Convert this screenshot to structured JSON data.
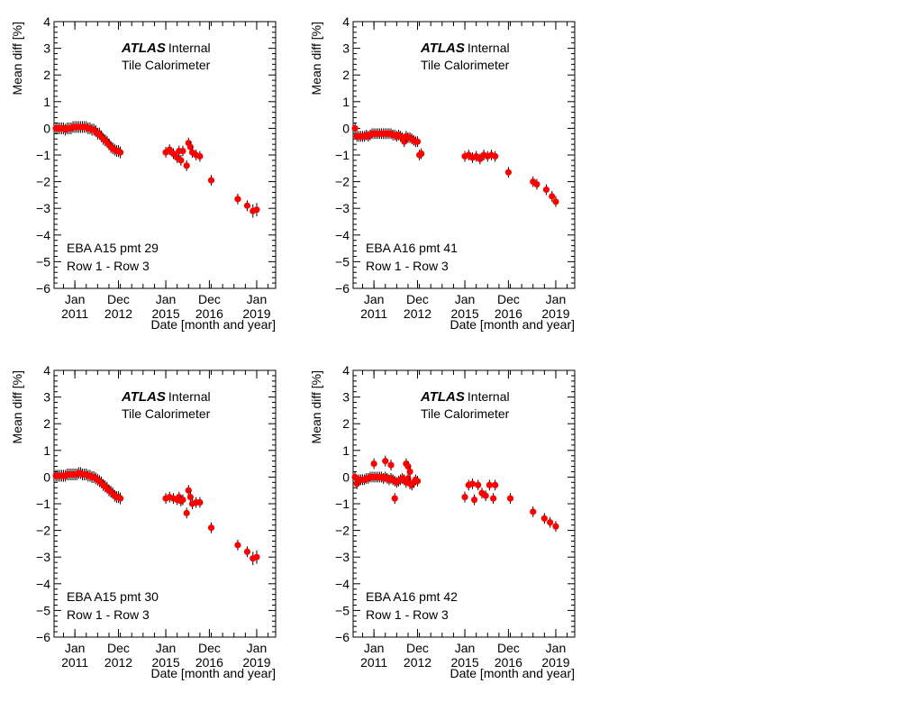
{
  "chart_data": [
    {
      "type": "scatter",
      "atlas_label": "ATLAS",
      "atlas_status": "Internal",
      "subtitle": "Tile Calorimeter",
      "ylabel": "Mean diff [%]",
      "xlabel": "Date [month and year]",
      "ylim": [
        -6,
        4
      ],
      "yticks": [
        "4",
        "3",
        "2",
        "1",
        "0",
        "−1",
        "−2",
        "−3",
        "−4",
        "−5",
        "−6"
      ],
      "xticks": [
        {
          "month": "Jan",
          "year": "2011"
        },
        {
          "month": "Dec",
          "year": "2012"
        },
        {
          "month": "Jan",
          "year": "2015"
        },
        {
          "month": "Dec",
          "year": "2016"
        },
        {
          "month": "Jan",
          "year": "2019"
        }
      ],
      "channel_label": "EBA A15 pmt 29",
      "row_label": "Row 1 - Row 3",
      "series": [
        {
          "x": [
            "2010-03",
            "2010-04",
            "2010-05",
            "2010-06",
            "2010-07",
            "2010-08",
            "2010-09",
            "2010-10",
            "2010-11",
            "2010-12",
            "2011-01",
            "2011-02",
            "2011-03",
            "2011-04",
            "2011-05",
            "2011-06",
            "2011-07",
            "2011-08",
            "2011-09",
            "2011-10",
            "2011-11",
            "2011-12",
            "2012-01",
            "2012-02",
            "2012-03",
            "2012-04",
            "2012-05",
            "2012-06",
            "2012-07",
            "2012-08",
            "2012-09",
            "2012-10",
            "2012-11",
            "2012-12",
            "2013-01",
            "2015-01",
            "2015-03",
            "2015-05",
            "2015-07",
            "2015-08",
            "2015-09",
            "2015-10",
            "2015-12",
            "2016-01",
            "2016-02",
            "2016-03",
            "2016-05",
            "2016-07",
            "2017-01",
            "2018-03",
            "2018-08",
            "2018-11",
            "2019-01"
          ],
          "y": [
            0,
            0,
            0,
            0,
            0,
            -0.05,
            0,
            0,
            0,
            0.05,
            0.05,
            0.05,
            0.05,
            0.05,
            0.05,
            0.05,
            0.05,
            0,
            0,
            -0.05,
            -0.05,
            -0.1,
            -0.2,
            -0.2,
            -0.3,
            -0.4,
            -0.45,
            -0.5,
            -0.6,
            -0.7,
            -0.75,
            -0.8,
            -0.85,
            -0.85,
            -0.9,
            -0.9,
            -0.8,
            -0.95,
            -1.1,
            -0.85,
            -1.2,
            -0.85,
            -1.4,
            -0.55,
            -0.7,
            -0.9,
            -1.0,
            -1.05,
            -1.95,
            -2.65,
            -2.9,
            -3.1,
            -3.05
          ],
          "err": [
            0.22,
            0.22,
            0.22,
            0.22,
            0.22,
            0.22,
            0.22,
            0.22,
            0.22,
            0.22,
            0.22,
            0.22,
            0.22,
            0.22,
            0.22,
            0.22,
            0.22,
            0.22,
            0.22,
            0.22,
            0.22,
            0.22,
            0.22,
            0.22,
            0.22,
            0.22,
            0.22,
            0.22,
            0.22,
            0.22,
            0.22,
            0.22,
            0.22,
            0.22,
            0.22,
            0.2,
            0.2,
            0.2,
            0.2,
            0.2,
            0.2,
            0.2,
            0.2,
            0.2,
            0.2,
            0.2,
            0.2,
            0.2,
            0.2,
            0.2,
            0.2,
            0.25,
            0.25
          ]
        }
      ]
    },
    {
      "type": "scatter",
      "atlas_label": "ATLAS",
      "atlas_status": "Internal",
      "subtitle": "Tile Calorimeter",
      "ylabel": "Mean diff [%]",
      "xlabel": "Date [month and year]",
      "ylim": [
        -6,
        4
      ],
      "yticks": [
        "4",
        "3",
        "2",
        "1",
        "0",
        "−1",
        "−2",
        "−3",
        "−4",
        "−5",
        "−6"
      ],
      "xticks": [
        {
          "month": "Jan",
          "year": "2011"
        },
        {
          "month": "Dec",
          "year": "2012"
        },
        {
          "month": "Jan",
          "year": "2015"
        },
        {
          "month": "Dec",
          "year": "2016"
        },
        {
          "month": "Jan",
          "year": "2019"
        }
      ],
      "channel_label": "EBA A16 pmt 41",
      "row_label": "Row 1 - Row 3",
      "series": [
        {
          "x": [
            "2010-03",
            "2010-04",
            "2010-05",
            "2010-06",
            "2010-07",
            "2010-08",
            "2010-09",
            "2010-10",
            "2010-11",
            "2010-12",
            "2011-01",
            "2011-02",
            "2011-03",
            "2011-04",
            "2011-05",
            "2011-06",
            "2011-07",
            "2011-08",
            "2011-09",
            "2011-10",
            "2011-11",
            "2011-12",
            "2012-01",
            "2012-02",
            "2012-03",
            "2012-04",
            "2012-05",
            "2012-06",
            "2012-07",
            "2012-08",
            "2012-09",
            "2012-10",
            "2012-11",
            "2012-12",
            "2013-01",
            "2013-02",
            "2015-01",
            "2015-03",
            "2015-05",
            "2015-07",
            "2015-09",
            "2015-11",
            "2016-01",
            "2016-03",
            "2016-05",
            "2016-12",
            "2018-01",
            "2018-03",
            "2018-08",
            "2018-11",
            "2019-01"
          ],
          "y": [
            0,
            -0.3,
            -0.3,
            -0.3,
            -0.3,
            -0.3,
            -0.25,
            -0.3,
            -0.25,
            -0.2,
            -0.2,
            -0.2,
            -0.2,
            -0.2,
            -0.2,
            -0.2,
            -0.2,
            -0.2,
            -0.2,
            -0.2,
            -0.25,
            -0.25,
            -0.3,
            -0.25,
            -0.3,
            -0.35,
            -0.5,
            -0.3,
            -0.35,
            -0.35,
            -0.4,
            -0.45,
            -0.5,
            -0.5,
            -1.0,
            -0.95,
            -1.05,
            -1.0,
            -1.1,
            -1.05,
            -1.15,
            -1.0,
            -1.05,
            -1.0,
            -1.05,
            -1.65,
            -2.0,
            -2.1,
            -2.3,
            -2.55,
            -2.75
          ],
          "err": [
            0.2,
            0.2,
            0.2,
            0.2,
            0.2,
            0.2,
            0.2,
            0.2,
            0.2,
            0.2,
            0.2,
            0.2,
            0.2,
            0.2,
            0.2,
            0.2,
            0.2,
            0.2,
            0.2,
            0.2,
            0.2,
            0.2,
            0.2,
            0.2,
            0.2,
            0.2,
            0.2,
            0.2,
            0.2,
            0.2,
            0.2,
            0.2,
            0.2,
            0.2,
            0.2,
            0.2,
            0.2,
            0.2,
            0.2,
            0.2,
            0.2,
            0.2,
            0.2,
            0.2,
            0.2,
            0.2,
            0.2,
            0.2,
            0.2,
            0.2,
            0.2
          ]
        }
      ]
    },
    {
      "type": "scatter",
      "atlas_label": "ATLAS",
      "atlas_status": "Internal",
      "subtitle": "Tile Calorimeter",
      "ylabel": "Mean diff [%]",
      "xlabel": "Date [month and year]",
      "ylim": [
        -6,
        4
      ],
      "yticks": [
        "4",
        "3",
        "2",
        "1",
        "0",
        "−1",
        "−2",
        "−3",
        "−4",
        "−5",
        "−6"
      ],
      "xticks": [
        {
          "month": "Jan",
          "year": "2011"
        },
        {
          "month": "Dec",
          "year": "2012"
        },
        {
          "month": "Jan",
          "year": "2015"
        },
        {
          "month": "Dec",
          "year": "2016"
        },
        {
          "month": "Jan",
          "year": "2019"
        }
      ],
      "channel_label": "EBA A15 pmt 30",
      "row_label": "Row 1 - Row 3",
      "series": [
        {
          "x": [
            "2010-03",
            "2010-04",
            "2010-05",
            "2010-06",
            "2010-07",
            "2010-08",
            "2010-09",
            "2010-10",
            "2010-11",
            "2010-12",
            "2011-01",
            "2011-02",
            "2011-03",
            "2011-04",
            "2011-05",
            "2011-06",
            "2011-07",
            "2011-08",
            "2011-09",
            "2011-10",
            "2011-11",
            "2011-12",
            "2012-01",
            "2012-02",
            "2012-03",
            "2012-04",
            "2012-05",
            "2012-06",
            "2012-07",
            "2012-08",
            "2012-09",
            "2012-10",
            "2012-11",
            "2012-12",
            "2013-01",
            "2015-01",
            "2015-03",
            "2015-05",
            "2015-07",
            "2015-08",
            "2015-09",
            "2015-10",
            "2015-12",
            "2016-01",
            "2016-02",
            "2016-03",
            "2016-05",
            "2016-07",
            "2017-01",
            "2018-03",
            "2018-08",
            "2018-11",
            "2019-01"
          ],
          "y": [
            0.05,
            0.05,
            0.05,
            0.05,
            0.05,
            0.05,
            0.1,
            0.1,
            0.1,
            0.1,
            0.1,
            0.1,
            0.15,
            0.15,
            0.1,
            0.1,
            0.1,
            0.05,
            0.05,
            0,
            0,
            -0.05,
            -0.1,
            -0.15,
            -0.2,
            -0.3,
            -0.35,
            -0.4,
            -0.5,
            -0.55,
            -0.6,
            -0.7,
            -0.75,
            -0.75,
            -0.8,
            -0.8,
            -0.75,
            -0.8,
            -0.85,
            -0.75,
            -0.9,
            -0.85,
            -1.35,
            -0.5,
            -0.75,
            -1.0,
            -0.95,
            -0.95,
            -1.9,
            -2.55,
            -2.8,
            -3.05,
            -3.0
          ],
          "err": [
            0.22,
            0.22,
            0.22,
            0.22,
            0.22,
            0.22,
            0.22,
            0.22,
            0.22,
            0.22,
            0.22,
            0.22,
            0.22,
            0.22,
            0.22,
            0.22,
            0.22,
            0.22,
            0.22,
            0.22,
            0.22,
            0.22,
            0.22,
            0.22,
            0.22,
            0.22,
            0.22,
            0.22,
            0.22,
            0.22,
            0.22,
            0.22,
            0.22,
            0.22,
            0.22,
            0.2,
            0.2,
            0.2,
            0.2,
            0.2,
            0.2,
            0.2,
            0.2,
            0.2,
            0.2,
            0.2,
            0.2,
            0.2,
            0.2,
            0.2,
            0.2,
            0.25,
            0.25
          ]
        }
      ]
    },
    {
      "type": "scatter",
      "atlas_label": "ATLAS",
      "atlas_status": "Internal",
      "subtitle": "Tile Calorimeter",
      "ylabel": "Mean diff [%]",
      "xlabel": "Date [month and year]",
      "ylim": [
        -6,
        4
      ],
      "yticks": [
        "4",
        "3",
        "2",
        "1",
        "0",
        "−1",
        "−2",
        "−3",
        "−4",
        "−5",
        "−6"
      ],
      "xticks": [
        {
          "month": "Jan",
          "year": "2011"
        },
        {
          "month": "Dec",
          "year": "2012"
        },
        {
          "month": "Jan",
          "year": "2015"
        },
        {
          "month": "Dec",
          "year": "2016"
        },
        {
          "month": "Jan",
          "year": "2019"
        }
      ],
      "channel_label": "EBA A16 pmt 42",
      "row_label": "Row 1 - Row 3",
      "series": [
        {
          "x": [
            "2010-03",
            "2010-04",
            "2010-05",
            "2010-06",
            "2010-07",
            "2010-08",
            "2010-09",
            "2010-10",
            "2010-11",
            "2010-12",
            "2011-01",
            "2011-02",
            "2011-03",
            "2011-04",
            "2011-05",
            "2011-06",
            "2011-07",
            "2011-08",
            "2011-09",
            "2011-10",
            "2011-11",
            "2011-12",
            "2012-01",
            "2012-02",
            "2012-03",
            "2012-04",
            "2012-05",
            "2012-06",
            "2012-07",
            "2012-08",
            "2012-09",
            "2012-10",
            "2012-11",
            "2012-12",
            "2011-01",
            "2011-07",
            "2011-10",
            "2011-12",
            "2012-06",
            "2012-07",
            "2012-08",
            "2015-01",
            "2015-03",
            "2015-05",
            "2015-06",
            "2015-08",
            "2015-10",
            "2015-12",
            "2016-02",
            "2016-04",
            "2016-05",
            "2017-01",
            "2018-01",
            "2018-07",
            "2018-10",
            "2019-01"
          ],
          "y": [
            0,
            -0.25,
            -0.1,
            -0.1,
            -0.1,
            -0.1,
            -0.05,
            -0.05,
            0,
            0,
            0,
            0,
            0,
            0,
            0,
            -0.05,
            0,
            -0.05,
            -0.1,
            -0.05,
            -0.1,
            -0.15,
            -0.2,
            -0.15,
            -0.1,
            -0.05,
            -0.1,
            -0.2,
            -0.05,
            -0.25,
            -0.3,
            -0.2,
            -0.1,
            -0.15,
            0.5,
            0.6,
            0.45,
            -0.8,
            0.5,
            0.4,
            0.2,
            -0.75,
            -0.3,
            -0.25,
            -0.85,
            -0.3,
            -0.6,
            -0.7,
            -0.3,
            -0.8,
            -0.3,
            -0.8,
            -1.3,
            -1.55,
            -1.7,
            -1.85
          ],
          "err": [
            0.2,
            0.2,
            0.2,
            0.2,
            0.2,
            0.2,
            0.2,
            0.2,
            0.2,
            0.2,
            0.2,
            0.2,
            0.2,
            0.2,
            0.2,
            0.2,
            0.2,
            0.2,
            0.2,
            0.2,
            0.2,
            0.2,
            0.2,
            0.2,
            0.2,
            0.2,
            0.2,
            0.2,
            0.2,
            0.2,
            0.2,
            0.2,
            0.2,
            0.2,
            0.2,
            0.2,
            0.2,
            0.2,
            0.2,
            0.2,
            0.2,
            0.2,
            0.2,
            0.2,
            0.2,
            0.2,
            0.2,
            0.2,
            0.2,
            0.2,
            0.2,
            0.2,
            0.2,
            0.2,
            0.2,
            0.2
          ]
        }
      ]
    }
  ]
}
